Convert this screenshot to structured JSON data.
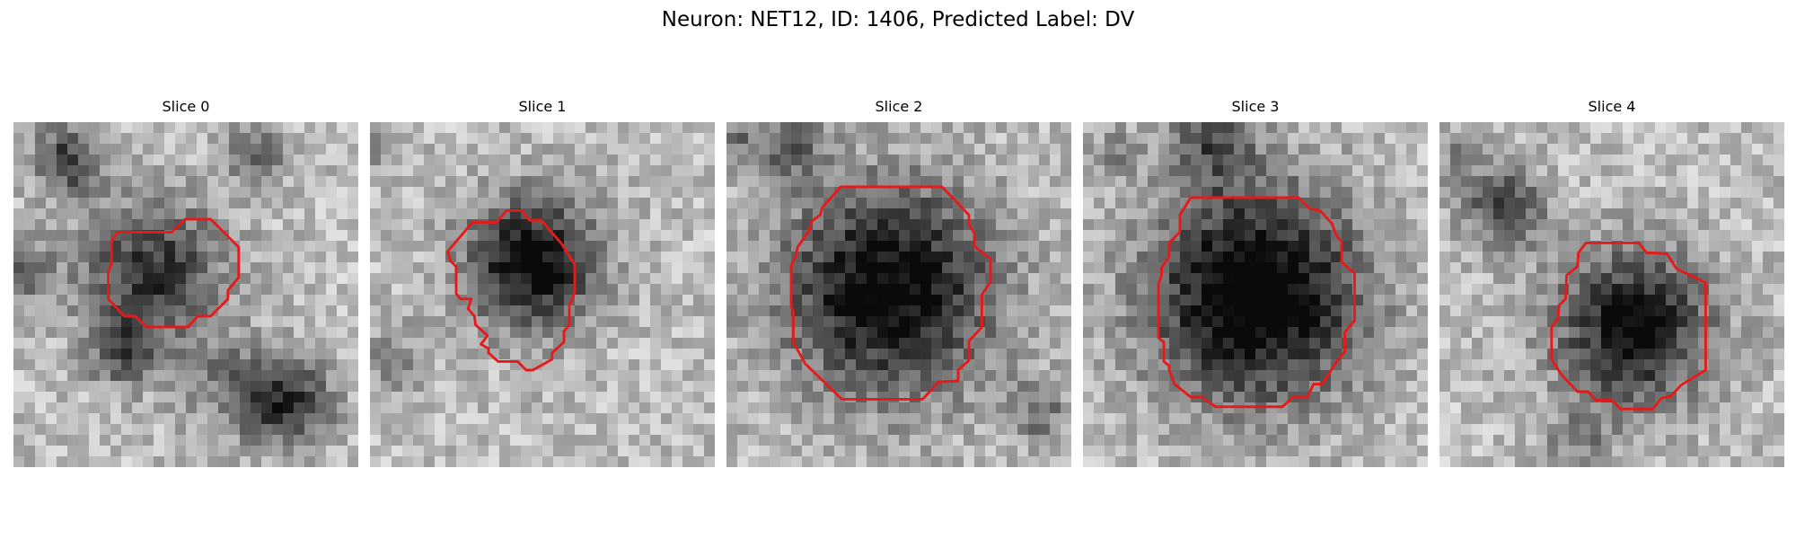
{
  "figure": {
    "title": "Neuron: NET12, ID: 1406, Predicted Label: DV",
    "colors": {
      "contour": "#e61a1a",
      "background": "#ffffff"
    },
    "panels": [
      {
        "title": "Slice 0"
      },
      {
        "title": "Slice 1"
      },
      {
        "title": "Slice 2"
      },
      {
        "title": "Slice 3"
      },
      {
        "title": "Slice 4"
      }
    ]
  }
}
